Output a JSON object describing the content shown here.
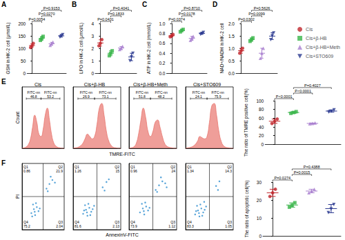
{
  "chart_data": [
    {
      "type": "dot",
      "panel_label": "A",
      "y_label": "GSH in HK-2 cell (μmol/L)",
      "ylim": [
        0,
        200
      ],
      "yticks": [
        0,
        50,
        100,
        150,
        200
      ],
      "tick_labels": "y",
      "series": [
        {
          "name": "Cis",
          "color": "#c1272d",
          "marker": "circle",
          "values": [
            103,
            110,
            120
          ],
          "mean": 111,
          "sd": 8
        },
        {
          "name": "Cis+β-HB",
          "color": "#39b54a",
          "marker": "square",
          "values": [
            132,
            140,
            148
          ],
          "mean": 140,
          "sd": 8
        },
        {
          "name": "Cis+β-HB+Meth",
          "color": "#a97fcf",
          "marker": "triangle",
          "values": [
            112,
            118,
            125
          ],
          "mean": 118,
          "sd": 6
        },
        {
          "name": "Cis+STO609",
          "color": "#2b3990",
          "marker": "triangle-down",
          "values": [
            145,
            150,
            155
          ],
          "mean": 150,
          "sd": 5
        }
      ],
      "comparisons": [
        {
          "groups": [
            "Cis",
            "Cis+β-HB"
          ],
          "label": "P=0.0054"
        },
        {
          "groups": [
            "Cis+β-HB",
            "Cis+β-HB+Meth"
          ],
          "label": "P=0.0270"
        },
        {
          "groups": [
            "Cis+β-HB",
            "Cis+STO609"
          ],
          "label": "P=0.9153"
        }
      ]
    },
    {
      "type": "dot",
      "panel_label": "B",
      "y_label": "LPO in HK-2 cell (μmol/L)",
      "ylim": [
        0,
        4
      ],
      "yticks": [
        0,
        1,
        2,
        3,
        4
      ],
      "tick_labels": "y",
      "series": [
        {
          "name": "Cis",
          "color": "#c1272d",
          "marker": "circle",
          "values": [
            2.2,
            2.4,
            2.7
          ],
          "mean": 2.43,
          "sd": 0.25
        },
        {
          "name": "Cis+β-HB",
          "color": "#39b54a",
          "marker": "square",
          "values": [
            1.4,
            1.6,
            1.8
          ],
          "mean": 1.6,
          "sd": 0.2
        },
        {
          "name": "Cis+β-HB+Meth",
          "color": "#a97fcf",
          "marker": "triangle",
          "values": [
            1.9,
            2.0,
            2.15
          ],
          "mean": 2.02,
          "sd": 0.12
        },
        {
          "name": "Cis+STO609",
          "color": "#2b3990",
          "marker": "triangle-down",
          "values": [
            1.0,
            1.3,
            1.6
          ],
          "mean": 1.3,
          "sd": 0.3
        }
      ],
      "comparisons": [
        {
          "groups": [
            "Cis",
            "Cis+β-HB"
          ],
          "label": "P=0.0431"
        },
        {
          "groups": [
            "Cis+β-HB",
            "Cis+β-HB+Meth"
          ],
          "label": "P=0.1833"
        },
        {
          "groups": [
            "Cis+β-HB",
            "Cis+STO609"
          ],
          "label": "P=0.4041"
        }
      ]
    },
    {
      "type": "dot",
      "panel_label": "C",
      "y_label": "ATP in HK-2 cell (mmol/L)",
      "ylim": [
        0,
        1
      ],
      "yticks": [
        {
          "value": 0,
          "label": "0.0"
        },
        0.2,
        0.4,
        0.6,
        0.8,
        {
          "value": 1,
          "label": "1.0"
        }
      ],
      "tick_labels": "y",
      "series": [
        {
          "name": "Cis",
          "color": "#c1272d",
          "marker": "circle",
          "values": [
            0.73,
            0.75,
            0.78
          ],
          "mean": 0.753,
          "sd": 0.025
        },
        {
          "name": "Cis+β-HB",
          "color": "#39b54a",
          "marker": "square",
          "values": [
            0.83,
            0.86,
            0.88
          ],
          "mean": 0.857,
          "sd": 0.025
        },
        {
          "name": "Cis+β-HB+Meth",
          "color": "#a97fcf",
          "marker": "triangle",
          "values": [
            0.66,
            0.7,
            0.74
          ],
          "mean": 0.7,
          "sd": 0.04
        },
        {
          "name": "Cis+STO609",
          "color": "#2b3990",
          "marker": "triangle-down",
          "values": [
            0.78,
            0.8,
            0.82
          ],
          "mean": 0.8,
          "sd": 0.02
        }
      ],
      "comparisons": [
        {
          "groups": [
            "Cis",
            "Cis+β-HB"
          ],
          "label": "P=0.0374"
        },
        {
          "groups": [
            "Cis+β-HB",
            "Cis+β-HB+Meth"
          ],
          "label": "P=0.0178"
        },
        {
          "groups": [
            "Cis+β-HB",
            "Cis+STO609"
          ],
          "label": "P=0.8710"
        }
      ]
    },
    {
      "type": "dot",
      "panel_label": "D",
      "y_label": "NAD+/NADH in HK-2 cell",
      "ylim": [
        0,
        2
      ],
      "yticks": [
        {
          "value": 0,
          "label": "0.0"
        },
        0.5,
        {
          "value": 1,
          "label": "1.0"
        },
        1.5,
        {
          "value": 2,
          "label": "2.0"
        }
      ],
      "tick_labels": "y",
      "legend": "right",
      "series": [
        {
          "name": "Cis",
          "color": "#c1272d",
          "marker": "circle",
          "values": [
            0.8,
            0.9,
            1.0
          ],
          "mean": 0.9,
          "sd": 0.1
        },
        {
          "name": "Cis+β-HB",
          "color": "#39b54a",
          "marker": "square",
          "values": [
            1.28,
            1.35,
            1.42
          ],
          "mean": 1.35,
          "sd": 0.07
        },
        {
          "name": "Cis+β-HB+Meth",
          "color": "#a97fcf",
          "marker": "triangle",
          "values": [
            0.6,
            0.8,
            1.0
          ],
          "mean": 0.8,
          "sd": 0.2
        },
        {
          "name": "Cis+STO609",
          "color": "#2b3990",
          "marker": "triangle-down",
          "values": [
            1.35,
            1.5,
            1.62
          ],
          "mean": 1.49,
          "sd": 0.135
        }
      ],
      "comparisons": [
        {
          "groups": [
            "Cis",
            "Cis+β-HB"
          ],
          "label": "P=0.0302"
        },
        {
          "groups": [
            "Cis+β-HB",
            "Cis+β-HB+Meth"
          ],
          "label": "P=0.0099"
        },
        {
          "groups": [
            "Cis+β-HB",
            "Cis+STO609"
          ],
          "label": "P=0.5626"
        }
      ]
    },
    {
      "type": "area",
      "panel_label": "E",
      "x_label": "TMRE-FITC",
      "y_label": "Count",
      "xlim": [
        0,
        20
      ],
      "ylim": [
        0,
        130
      ],
      "tick_labels": false,
      "color": "#e8756d",
      "panels": [
        {
          "title": "Cis",
          "x": [
            0,
            1,
            2,
            3,
            4,
            5,
            6,
            7,
            8,
            9,
            10,
            11,
            12,
            13,
            14,
            15,
            16,
            17,
            18,
            19,
            20
          ],
          "values": [
            0,
            1,
            3,
            8,
            20,
            45,
            70,
            55,
            30,
            25,
            40,
            70,
            85,
            60,
            30,
            12,
            5,
            2,
            1,
            0,
            0
          ],
          "gates": [
            {
              "name": "FITC-nn",
              "value": 46.8,
              "range": [
                2,
                9
              ]
            },
            {
              "name": "FITC-nn",
              "value": 53.2,
              "range": [
                9,
                18
              ]
            }
          ]
        },
        {
          "title": "Cis+β-HB",
          "x": [
            0,
            1,
            2,
            3,
            4,
            5,
            6,
            7,
            8,
            9,
            10,
            11,
            12,
            13,
            14,
            15,
            16,
            17,
            18,
            19,
            20
          ],
          "values": [
            0,
            1,
            2,
            5,
            10,
            20,
            30,
            25,
            20,
            25,
            50,
            85,
            95,
            70,
            35,
            15,
            6,
            2,
            1,
            0,
            0
          ],
          "gates": [
            {
              "name": "FITC-nn",
              "value": 26.9,
              "range": [
                2,
                9
              ]
            },
            {
              "name": "FITC-nn",
              "value": 73.1,
              "range": [
                9,
                18
              ]
            }
          ]
        },
        {
          "title": "Cis+β-HB+Meth",
          "x": [
            0,
            1,
            2,
            3,
            4,
            5,
            6,
            7,
            8,
            9,
            10,
            11,
            12,
            13,
            14,
            15,
            16,
            17,
            18,
            19,
            20
          ],
          "values": [
            0,
            1,
            3,
            10,
            30,
            60,
            85,
            65,
            35,
            25,
            35,
            55,
            60,
            45,
            25,
            10,
            4,
            2,
            1,
            0,
            0
          ],
          "gates": [
            {
              "name": "FITC-nn",
              "value": 51.8,
              "range": [
                2,
                9
              ]
            },
            {
              "name": "FITC-nn",
              "value": 48.2,
              "range": [
                9,
                18
              ]
            }
          ]
        },
        {
          "title": "Cis+STO609",
          "x": [
            0,
            1,
            2,
            3,
            4,
            5,
            6,
            7,
            8,
            9,
            10,
            11,
            12,
            13,
            14,
            15,
            16,
            17,
            18,
            19,
            20
          ],
          "values": [
            0,
            1,
            2,
            4,
            8,
            15,
            25,
            22,
            20,
            25,
            55,
            90,
            95,
            70,
            35,
            14,
            5,
            2,
            1,
            0,
            0
          ],
          "gates": [
            {
              "name": "FITC-nn",
              "value": 24.1,
              "range": [
                2,
                9
              ]
            },
            {
              "name": "FITC-nn",
              "value": 75.9,
              "range": [
                9,
                18
              ]
            }
          ]
        }
      ]
    },
    {
      "type": "dot",
      "y_label": "The ratio of TMRE positive cell(%)",
      "ylim": [
        0,
        100
      ],
      "yticks": [
        0,
        20,
        40,
        60,
        80,
        100
      ],
      "tick_labels": "y",
      "series": [
        {
          "name": "Cis",
          "color": "#c1272d",
          "marker": "circle",
          "values": [
            48,
            53,
            58
          ],
          "mean": 53,
          "sd": 5
        },
        {
          "name": "Cis+β-HB",
          "color": "#39b54a",
          "marker": "square",
          "values": [
            71,
            73,
            75
          ],
          "mean": 73,
          "sd": 2
        },
        {
          "name": "Cis+β-HB+Meth",
          "color": "#a97fcf",
          "marker": "triangle",
          "values": [
            47,
            48,
            49
          ],
          "mean": 48,
          "sd": 1
        },
        {
          "name": "Cis+STO609",
          "color": "#2b3990",
          "marker": "triangle-down",
          "values": [
            74,
            76,
            79
          ],
          "mean": 76.3,
          "sd": 2.5
        }
      ],
      "comparisons": [
        {
          "groups": [
            "Cis",
            "Cis+β-HB"
          ],
          "label": "P<0.0001"
        },
        {
          "groups": [
            "Cis+β-HB",
            "Cis+β-HB+Meth"
          ],
          "label": "P<0.0001"
        },
        {
          "groups": [
            "Cis+β-HB",
            "Cis+STO609"
          ],
          "label": "P=0.4027"
        }
      ]
    },
    {
      "type": "scatter",
      "panel_label": "F",
      "x_label": "AnnexinV-FITC",
      "y_label": "PI",
      "xlim": [
        0,
        10
      ],
      "ylim": [
        0,
        10
      ],
      "tick_labels": false,
      "color": "#2f8fcf",
      "quadrant_split": [
        5,
        5
      ],
      "panels": [
        {
          "x": [
            2.2,
            2.8,
            3.1,
            3.5,
            3.9,
            2.6,
            3.3,
            4.2,
            3.0,
            2.4,
            5.8,
            6.5,
            7.2,
            6.1,
            7.8,
            6.8
          ],
          "y": [
            2.5,
            3.1,
            2.2,
            3.4,
            2.8,
            3.8,
            4.0,
            3.2,
            2.7,
            2.0,
            6.2,
            6.9,
            7.5,
            5.8,
            7.1,
            8.0
          ],
          "quadrants": [
            {
              "label": "Q1",
              "value": 0.86
            },
            {
              "label": "Q2",
              "value": 21.9
            },
            {
              "label": "Q3",
              "value": 2.04
            },
            {
              "label": "Q4",
              "value": 75.2
            }
          ]
        },
        {
          "x": [
            2.1,
            2.7,
            3.0,
            3.4,
            3.8,
            2.5,
            3.2,
            4.1,
            2.9,
            3.6,
            4.4,
            2.3,
            6.2,
            7.0,
            6.6,
            7.5
          ],
          "y": [
            2.4,
            3.0,
            2.1,
            3.3,
            2.7,
            3.7,
            3.9,
            3.1,
            2.6,
            2.2,
            3.6,
            2.9,
            6.4,
            7.2,
            5.9,
            7.6
          ],
          "quadrants": [
            {
              "label": "Q1",
              "value": 1.26
            },
            {
              "label": "Q2",
              "value": 15.0
            },
            {
              "label": "Q3",
              "value": 2.13
            },
            {
              "label": "Q4",
              "value": 81.6
            }
          ]
        },
        {
          "x": [
            2.3,
            2.9,
            3.2,
            3.6,
            4.0,
            2.7,
            3.4,
            4.3,
            3.1,
            5.6,
            6.3,
            7.0,
            5.9,
            7.6,
            6.7,
            7.9
          ],
          "y": [
            2.6,
            3.2,
            2.3,
            3.5,
            2.9,
            3.9,
            4.1,
            3.3,
            2.8,
            6.0,
            6.7,
            7.3,
            5.7,
            7.0,
            7.9,
            6.4
          ],
          "quadrants": [
            {
              "label": "Q1",
              "value": 0.96
            },
            {
              "label": "Q2",
              "value": 24.0
            },
            {
              "label": "Q3",
              "value": 1.12
            },
            {
              "label": "Q4",
              "value": 73.9
            }
          ]
        },
        {
          "x": [
            2.0,
            2.6,
            2.9,
            3.3,
            3.7,
            2.4,
            3.1,
            4.0,
            2.8,
            3.5,
            4.3,
            2.2,
            3.9,
            6.4,
            7.1,
            6.8
          ],
          "y": [
            2.3,
            2.9,
            2.0,
            3.2,
            2.6,
            3.6,
            3.8,
            3.0,
            2.5,
            2.1,
            3.5,
            2.8,
            4.2,
            6.6,
            7.3,
            6.0
          ],
          "quadrants": [
            {
              "label": "Q1",
              "value": 1.34
            },
            {
              "label": "Q2",
              "value": 14.3
            },
            {
              "label": "Q3",
              "value": 1.05
            },
            {
              "label": "Q4",
              "value": 83.3
            }
          ]
        }
      ]
    },
    {
      "type": "dot",
      "y_label": "The ratio of apoptotic cell(%)",
      "ylim": [
        0,
        30
      ],
      "yticks": [
        0,
        10,
        20,
        30
      ],
      "tick_labels": "y",
      "series": [
        {
          "name": "Cis",
          "color": "#c1272d",
          "marker": "circle",
          "values": [
            22,
            24,
            26
          ],
          "mean": 24,
          "sd": 2
        },
        {
          "name": "Cis+β-HB",
          "color": "#39b54a",
          "marker": "square",
          "values": [
            16,
            17,
            18.5
          ],
          "mean": 17.2,
          "sd": 1.2
        },
        {
          "name": "Cis+β-HB+Meth",
          "color": "#a97fcf",
          "marker": "triangle",
          "values": [
            24,
            25,
            26
          ],
          "mean": 25,
          "sd": 1
        },
        {
          "name": "Cis+STO609",
          "color": "#2b3990",
          "marker": "triangle-down",
          "values": [
            13,
            15,
            17.5
          ],
          "mean": 15.2,
          "sd": 2.3
        }
      ],
      "comparisons": [
        {
          "groups": [
            "Cis",
            "Cis+β-HB"
          ],
          "label": "P=0.0274"
        },
        {
          "groups": [
            "Cis+β-HB",
            "Cis+β-HB+Meth"
          ],
          "label": "P=0.0015"
        },
        {
          "groups": [
            "Cis+β-HB",
            "Cis+STO609"
          ],
          "label": "P=0.4388"
        }
      ]
    }
  ]
}
